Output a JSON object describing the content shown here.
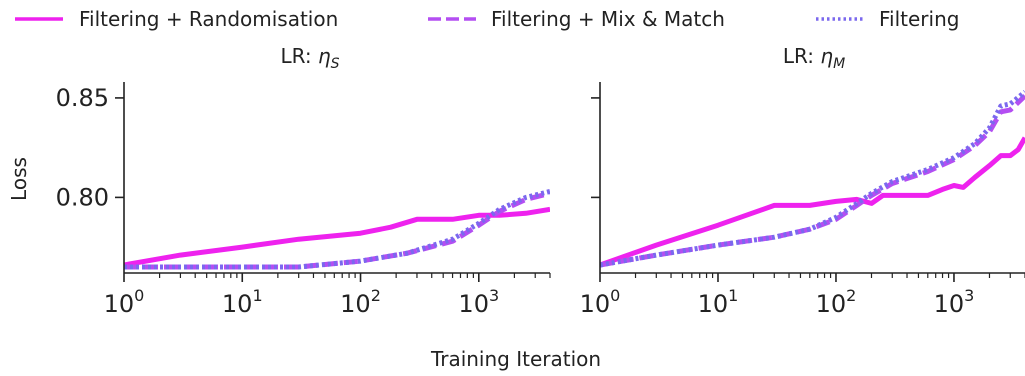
{
  "legend": {
    "placement": "top",
    "entries": [
      {
        "label": "Filtering + Randomisation",
        "color": "#ee22ee",
        "style": "solid"
      },
      {
        "label": "Filtering + Mix & Match",
        "color": "#b44ef2",
        "style": "dashed"
      },
      {
        "label": "Filtering",
        "color": "#7b68ee",
        "style": "dotted"
      }
    ]
  },
  "shared_xlabel": "Training Iteration",
  "chart_data": [
    {
      "type": "line",
      "title": "LR: ",
      "title_symbol": "η",
      "title_subscript": "S",
      "xlabel": "",
      "ylabel": "Loss",
      "xscale": "log",
      "xlim": [
        1,
        4000
      ],
      "ylim": [
        0.762,
        0.858
      ],
      "xticks": [
        {
          "pow": "0",
          "base": "10",
          "value": 1
        },
        {
          "pow": "1",
          "base": "10",
          "value": 10
        },
        {
          "pow": "2",
          "base": "10",
          "value": 100
        },
        {
          "pow": "3",
          "base": "10",
          "value": 1000
        }
      ],
      "yticks": [
        {
          "label": "0.80",
          "value": 0.8
        },
        {
          "label": "0.85",
          "value": 0.85
        }
      ],
      "grid": false,
      "series": [
        {
          "name": "Filtering + Randomisation",
          "x": [
            1,
            3,
            10,
            30,
            100,
            180,
            300,
            600,
            1000,
            1500,
            2500,
            4000
          ],
          "y": [
            0.766,
            0.771,
            0.775,
            0.779,
            0.782,
            0.785,
            0.789,
            0.789,
            0.791,
            0.791,
            0.792,
            0.794
          ]
        },
        {
          "name": "Filtering + Mix & Match",
          "x": [
            1,
            3,
            10,
            30,
            100,
            250,
            600,
            1000,
            1500,
            2500,
            4000
          ],
          "y": [
            0.765,
            0.765,
            0.765,
            0.765,
            0.768,
            0.772,
            0.778,
            0.786,
            0.793,
            0.799,
            0.802
          ]
        },
        {
          "name": "Filtering",
          "x": [
            1,
            3,
            10,
            30,
            100,
            250,
            600,
            1000,
            1500,
            2500,
            4000
          ],
          "y": [
            0.765,
            0.765,
            0.765,
            0.765,
            0.768,
            0.772,
            0.779,
            0.787,
            0.794,
            0.8,
            0.803
          ]
        }
      ]
    },
    {
      "type": "line",
      "title": "LR: ",
      "title_symbol": "η",
      "title_subscript": "M",
      "xlabel": "",
      "ylabel": "",
      "xscale": "log",
      "xlim": [
        1,
        4000
      ],
      "ylim": [
        0.762,
        0.858
      ],
      "xticks": [
        {
          "pow": "0",
          "base": "10",
          "value": 1
        },
        {
          "pow": "1",
          "base": "10",
          "value": 10
        },
        {
          "pow": "2",
          "base": "10",
          "value": 100
        },
        {
          "pow": "3",
          "base": "10",
          "value": 1000
        }
      ],
      "yticks": [
        {
          "label": "",
          "value": 0.8
        },
        {
          "label": "",
          "value": 0.85
        }
      ],
      "grid": false,
      "series": [
        {
          "name": "Filtering + Randomisation",
          "x": [
            1,
            3,
            10,
            30,
            60,
            100,
            150,
            200,
            250,
            600,
            800,
            1000,
            1200,
            1500,
            2000,
            2500,
            3000,
            3500,
            4000
          ],
          "y": [
            0.766,
            0.776,
            0.786,
            0.796,
            0.796,
            0.798,
            0.799,
            0.797,
            0.801,
            0.801,
            0.804,
            0.806,
            0.805,
            0.81,
            0.816,
            0.821,
            0.821,
            0.824,
            0.83
          ]
        },
        {
          "name": "Filtering + Mix & Match",
          "x": [
            1,
            3,
            10,
            30,
            60,
            100,
            150,
            200,
            300,
            600,
            1000,
            1500,
            2000,
            2500,
            3000,
            4000
          ],
          "y": [
            0.766,
            0.771,
            0.776,
            0.78,
            0.784,
            0.789,
            0.796,
            0.801,
            0.807,
            0.813,
            0.819,
            0.826,
            0.833,
            0.843,
            0.844,
            0.851
          ]
        },
        {
          "name": "Filtering",
          "x": [
            1,
            3,
            10,
            30,
            60,
            100,
            150,
            200,
            300,
            600,
            1000,
            1500,
            2000,
            2500,
            3000,
            4000
          ],
          "y": [
            0.766,
            0.771,
            0.776,
            0.78,
            0.784,
            0.79,
            0.797,
            0.802,
            0.808,
            0.814,
            0.82,
            0.827,
            0.835,
            0.846,
            0.847,
            0.853
          ]
        }
      ]
    }
  ]
}
